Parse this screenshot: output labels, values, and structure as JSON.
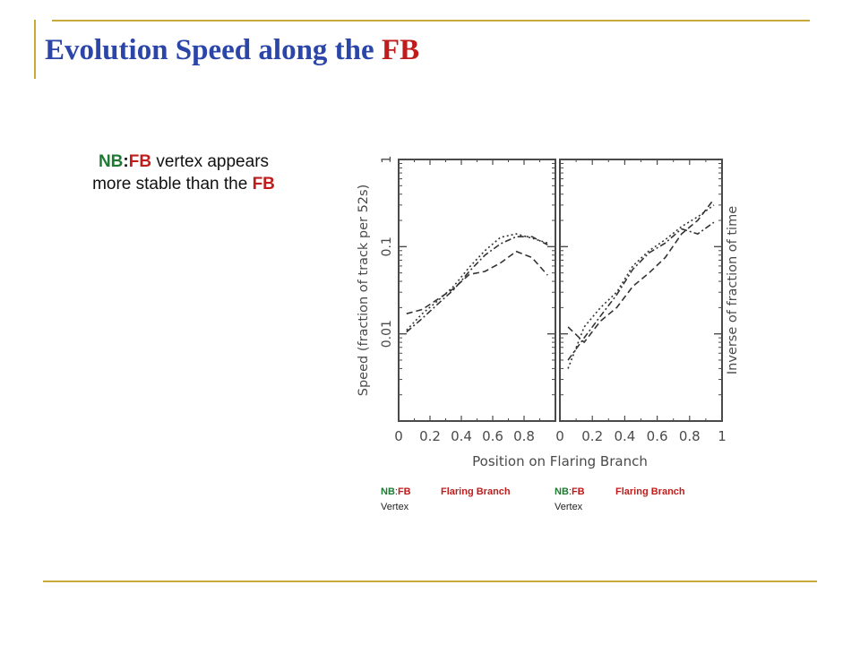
{
  "slide": {
    "title_main": "Evolution Speed along the ",
    "title_accent": "FB",
    "note": {
      "nb": "NB",
      "colon": ":",
      "fb": "FB",
      "mid": " vertex appears",
      "line2": "more stable than the ",
      "fb2": "FB"
    }
  },
  "captions": [
    {
      "nb": "NB",
      "colon": ":",
      "fb": "FB",
      "vertex": "Vertex",
      "branch": "Flaring Branch"
    },
    {
      "nb": "NB",
      "colon": ":",
      "fb": "FB",
      "vertex": "Vertex",
      "branch": "Flaring Branch"
    }
  ],
  "chart_data": [
    {
      "type": "line",
      "xlabel": "Position on Flaring Branch",
      "ylabel": "Speed (fraction of track per 52s)",
      "xlim": [
        0,
        1
      ],
      "ylim": [
        0.001,
        1
      ],
      "yscale": "log",
      "xticks": [
        "0",
        "0.2",
        "0.4",
        "0.6",
        "0.8"
      ],
      "yticks": [
        "0.01",
        "0.1",
        "1"
      ],
      "series": [
        {
          "style": "dotted",
          "x": [
            0.05,
            0.15,
            0.25,
            0.35,
            0.45,
            0.55,
            0.65,
            0.75,
            0.85,
            0.95
          ],
          "values": [
            0.011,
            0.017,
            0.024,
            0.035,
            0.058,
            0.09,
            0.128,
            0.14,
            0.125,
            0.11
          ]
        },
        {
          "style": "dashed",
          "x": [
            0.05,
            0.15,
            0.25,
            0.35,
            0.45,
            0.55,
            0.65,
            0.75,
            0.85,
            0.95
          ],
          "values": [
            0.017,
            0.019,
            0.025,
            0.033,
            0.048,
            0.052,
            0.065,
            0.088,
            0.075,
            0.047
          ]
        },
        {
          "style": "dashdot",
          "x": [
            0.05,
            0.15,
            0.25,
            0.35,
            0.45,
            0.55,
            0.65,
            0.75,
            0.85,
            0.95
          ],
          "values": [
            0.0105,
            0.015,
            0.022,
            0.032,
            0.052,
            0.08,
            0.108,
            0.13,
            0.13,
            0.105
          ]
        }
      ]
    },
    {
      "type": "line",
      "ylabel": "Inverse of fraction of time",
      "xlim": [
        0,
        1
      ],
      "ylim": [
        0.001,
        1
      ],
      "yscale": "log",
      "xticks": [
        "0",
        "0.2",
        "0.4",
        "0.6",
        "0.8",
        "1"
      ],
      "series": [
        {
          "style": "dotted",
          "x": [
            0.05,
            0.15,
            0.25,
            0.35,
            0.45,
            0.55,
            0.65,
            0.75,
            0.85,
            0.95
          ],
          "values": [
            0.004,
            0.012,
            0.02,
            0.03,
            0.06,
            0.09,
            0.12,
            0.17,
            0.22,
            0.3
          ]
        },
        {
          "style": "dashed",
          "x": [
            0.05,
            0.15,
            0.25,
            0.35,
            0.45,
            0.55,
            0.65,
            0.75,
            0.85,
            0.95
          ],
          "values": [
            0.012,
            0.008,
            0.014,
            0.02,
            0.035,
            0.05,
            0.075,
            0.14,
            0.2,
            0.35
          ]
        },
        {
          "style": "dashdot",
          "x": [
            0.05,
            0.15,
            0.25,
            0.35,
            0.45,
            0.55,
            0.65,
            0.75,
            0.85,
            0.95
          ],
          "values": [
            0.005,
            0.009,
            0.016,
            0.028,
            0.055,
            0.085,
            0.11,
            0.16,
            0.14,
            0.19
          ]
        }
      ]
    }
  ]
}
